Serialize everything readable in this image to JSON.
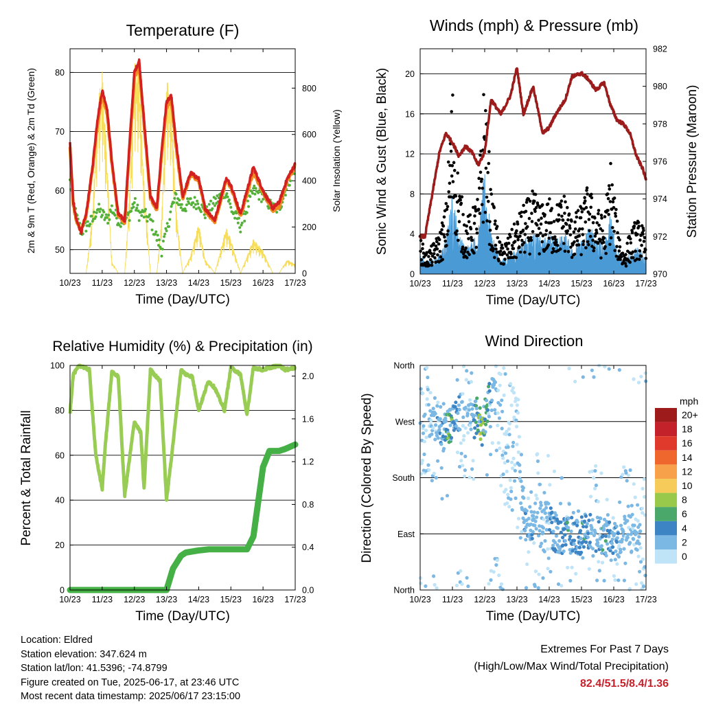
{
  "colors": {
    "red": "#d32020",
    "orange": "#f08a22",
    "green_td": "#55b03a",
    "yellow": "#f7dd5c",
    "wind": "#4a9ad6",
    "gust": "#000000",
    "pressure": "#9c1c1c",
    "rh": "#98cc55",
    "precip": "#45b045"
  },
  "x_ticks": [
    "10/23",
    "11/23",
    "12/23",
    "13/23",
    "14/23",
    "15/23",
    "16/23",
    "17/23"
  ],
  "x_label": "Time (Day/UTC)",
  "wind_speed_legend": {
    "unit": "mph",
    "labels": [
      "20+",
      "18",
      "16",
      "14",
      "12",
      "10",
      "8",
      "6",
      "4",
      "2",
      "0"
    ],
    "colors": [
      "#9e1b1b",
      "#c4222a",
      "#e03a2c",
      "#f0672e",
      "#f7a14a",
      "#f7cb5a",
      "#98c94a",
      "#4aa86a",
      "#3d84c4",
      "#7cb8e4",
      "#bfe3f7"
    ]
  },
  "chart_data": [
    {
      "type": "line",
      "title": "Temperature (F)",
      "xlabel": "Time (Day/UTC)",
      "ylabel": "2m & 9m T (Red, Orange) & 2m Td (Green)",
      "y2label": "Solar Insolation (Yellow)",
      "x": [
        0,
        0.1,
        0.2,
        0.35,
        0.5,
        0.7,
        0.85,
        1.0,
        1.15,
        1.3,
        1.5,
        1.7,
        1.85,
        2.0,
        2.15,
        2.3,
        2.5,
        2.7,
        2.85,
        3.0,
        3.15,
        3.3,
        3.5,
        3.75,
        4.0,
        4.2,
        4.5,
        4.85,
        5.0,
        5.3,
        5.7,
        6.0,
        6.3,
        6.5,
        6.75,
        7.0
      ],
      "ylim": [
        46,
        84
      ],
      "yticks": [
        50,
        60,
        70,
        80
      ],
      "y2lim": [
        0,
        970
      ],
      "y2ticks": [
        0,
        200,
        400,
        600,
        800
      ],
      "grid": true,
      "series": [
        {
          "name": "2m T",
          "values": [
            68,
            58,
            55,
            53,
            56,
            64,
            72,
            77,
            74,
            65,
            56,
            55,
            68,
            80,
            82,
            72,
            59,
            57,
            67,
            75,
            76,
            68,
            59,
            63,
            62,
            57,
            55,
            62,
            61,
            56,
            64,
            60,
            57,
            58,
            62,
            64.5
          ]
        },
        {
          "name": "9m T",
          "values": [
            67.5,
            58,
            55,
            53.5,
            56,
            64,
            71.5,
            76.5,
            73.5,
            65,
            56,
            55,
            67.5,
            79.5,
            81.5,
            71.5,
            59,
            57,
            66.5,
            74.5,
            75.5,
            67.5,
            59,
            63,
            62,
            57,
            55,
            62,
            61,
            56,
            63.5,
            60,
            57,
            57.5,
            62,
            64.5
          ]
        },
        {
          "name": "2m Td",
          "values": [
            61.5,
            58,
            55.5,
            53,
            54,
            55,
            57,
            56,
            55,
            57,
            55,
            55,
            56,
            58,
            56,
            56,
            55,
            52,
            50,
            53,
            57,
            59,
            57,
            58,
            58,
            56,
            58,
            60,
            57,
            54,
            60,
            59,
            57,
            57,
            61,
            64
          ]
        },
        {
          "name": "Solar Insolation",
          "values": [
            0,
            0,
            0,
            0,
            0,
            260,
            720,
            880,
            500,
            50,
            0,
            0,
            350,
            920,
            870,
            400,
            0,
            0,
            250,
            850,
            750,
            280,
            0,
            80,
            220,
            60,
            0,
            200,
            150,
            0,
            150,
            100,
            0,
            0,
            60,
            40
          ]
        }
      ]
    },
    {
      "type": "scatter",
      "title": "Winds (mph) & Pressure (mb)",
      "xlabel": "Time (Day/UTC)",
      "ylabel": "Sonic Wind & Gust (Blue, Black)",
      "y2label": "Station Pressure (Maroon)",
      "x": [
        0,
        0.15,
        0.35,
        0.6,
        0.8,
        1.0,
        1.2,
        1.4,
        1.6,
        1.8,
        2.0,
        2.2,
        2.5,
        2.8,
        3.0,
        3.2,
        3.5,
        3.8,
        4.0,
        4.2,
        4.5,
        4.7,
        5.0,
        5.2,
        5.45,
        5.7,
        5.9,
        6.1,
        6.3,
        6.5,
        6.7,
        6.9,
        7.0
      ],
      "ylim": [
        0,
        22.5
      ],
      "yticks": [
        0,
        4,
        8,
        12,
        16,
        20
      ],
      "y2lim": [
        970,
        982
      ],
      "y2ticks": [
        970,
        972,
        974,
        976,
        978,
        980,
        982
      ],
      "grid": true,
      "series": [
        {
          "name": "Sonic Wind",
          "values": [
            1.5,
            1,
            1,
            1.5,
            2.5,
            6,
            3,
            2,
            2.5,
            3,
            7.5,
            3,
            1,
            1.5,
            2,
            2.5,
            3,
            2.5,
            3,
            2.5,
            3,
            2,
            2.5,
            3.5,
            3,
            2,
            4.5,
            2,
            1,
            1.5,
            2,
            1.5,
            1
          ]
        },
        {
          "name": "Gust",
          "values": [
            3,
            1.5,
            2,
            3,
            5,
            14,
            7,
            4,
            4.5,
            6,
            15,
            6,
            2,
            3,
            4,
            5,
            6,
            5,
            5.5,
            5,
            6,
            4,
            5,
            6.5,
            5,
            4,
            8.5,
            4,
            1.5,
            3,
            4,
            3.5,
            2.5
          ]
        },
        {
          "name": "Station Pressure",
          "values": [
            972,
            972,
            974,
            976.5,
            977.5,
            977,
            976.3,
            976.8,
            976.5,
            975.8,
            976.5,
            979.3,
            978.5,
            979.5,
            981,
            978.5,
            980,
            977.5,
            977.8,
            978.5,
            979.3,
            980.5,
            980.7,
            980.4,
            979.8,
            980.2,
            979,
            978.2,
            978,
            977.5,
            976.3,
            975.6,
            975
          ]
        }
      ]
    },
    {
      "type": "line",
      "title": "Relative Humidity (%) & Precipitation (in)",
      "xlabel": "Time (Day/UTC)",
      "ylabel": "Percent & Total Rainfall",
      "x": [
        0,
        0.1,
        0.3,
        0.6,
        0.8,
        1.0,
        1.1,
        1.3,
        1.5,
        1.7,
        2.0,
        2.2,
        2.3,
        2.5,
        2.8,
        3.0,
        3.2,
        3.45,
        3.6,
        3.8,
        4.0,
        4.3,
        4.5,
        4.8,
        5.0,
        5.3,
        5.5,
        5.7,
        6.0,
        6.2,
        6.5,
        6.7,
        7.0
      ],
      "ylim": [
        0,
        100
      ],
      "yticks": [
        0,
        20,
        40,
        60,
        80,
        100
      ],
      "y2lim": [
        0,
        2.1
      ],
      "y2ticks": [
        0.0,
        0.4,
        0.8,
        1.2,
        1.6,
        2.0
      ],
      "grid": true,
      "series": [
        {
          "name": "Relative Humidity",
          "values": [
            79,
            96,
            100,
            98,
            60,
            45,
            65,
            97,
            95,
            42,
            75,
            70,
            45,
            98,
            93,
            40,
            65,
            98,
            96,
            95,
            80,
            93,
            90,
            80,
            99,
            96,
            78,
            99,
            98,
            99,
            100,
            98,
            99
          ]
        },
        {
          "name": "Total Precipitation",
          "values": [
            0,
            0,
            0,
            0,
            0,
            0,
            0,
            0,
            0,
            0,
            0,
            0,
            0,
            0,
            0,
            0,
            0.2,
            0.32,
            0.35,
            0.36,
            0.37,
            0.38,
            0.38,
            0.38,
            0.38,
            0.38,
            0.38,
            0.5,
            1.15,
            1.3,
            1.3,
            1.32,
            1.36
          ]
        }
      ]
    },
    {
      "type": "scatter",
      "title": "Wind Direction",
      "xlabel": "Time (Day/UTC)",
      "ylabel": "Direction (Colored By Speed)",
      "ytick_labels": [
        "North",
        "East",
        "South",
        "West",
        "North"
      ],
      "ytick_values": [
        0,
        90,
        180,
        270,
        360
      ],
      "ylim": [
        0,
        360
      ],
      "grid": true,
      "x": [
        0.2,
        0.5,
        0.7,
        0.9,
        1.1,
        1.3,
        1.6,
        1.8,
        1.9,
        2.1,
        2.3,
        2.6,
        3.0,
        3.3,
        3.6,
        3.9,
        4.1,
        4.3,
        4.6,
        4.9,
        5.1,
        5.4,
        5.7,
        6.0,
        6.3,
        6.6,
        6.9
      ],
      "values": [
        270,
        280,
        250,
        265,
        275,
        290,
        270,
        280,
        255,
        300,
        320,
        250,
        210,
        100,
        110,
        120,
        95,
        85,
        90,
        80,
        95,
        90,
        85,
        75,
        92,
        88,
        70
      ],
      "speed": [
        1,
        2,
        3,
        6,
        4,
        1,
        2,
        6,
        8,
        4,
        2,
        1,
        1,
        3,
        2,
        2,
        4,
        3,
        4,
        3,
        4,
        2,
        4,
        3,
        2,
        2,
        1
      ]
    }
  ],
  "info": {
    "location": "Location: Eldred",
    "elevation": "Station elevation: 347.624 m",
    "latlon": "Station lat/lon: 41.5396; -74.8799",
    "created": "Figure created on Tue, 2025-06-17, at 23:46 UTC",
    "recent": "Most recent data timestamp: 2025/06/17 23:15:00"
  },
  "extremes": {
    "title": "Extremes For Past 7 Days",
    "subtitle": "(High/Low/Max Wind/Total Precipitation)",
    "values": "82.4/51.5/8.4/1.36"
  }
}
